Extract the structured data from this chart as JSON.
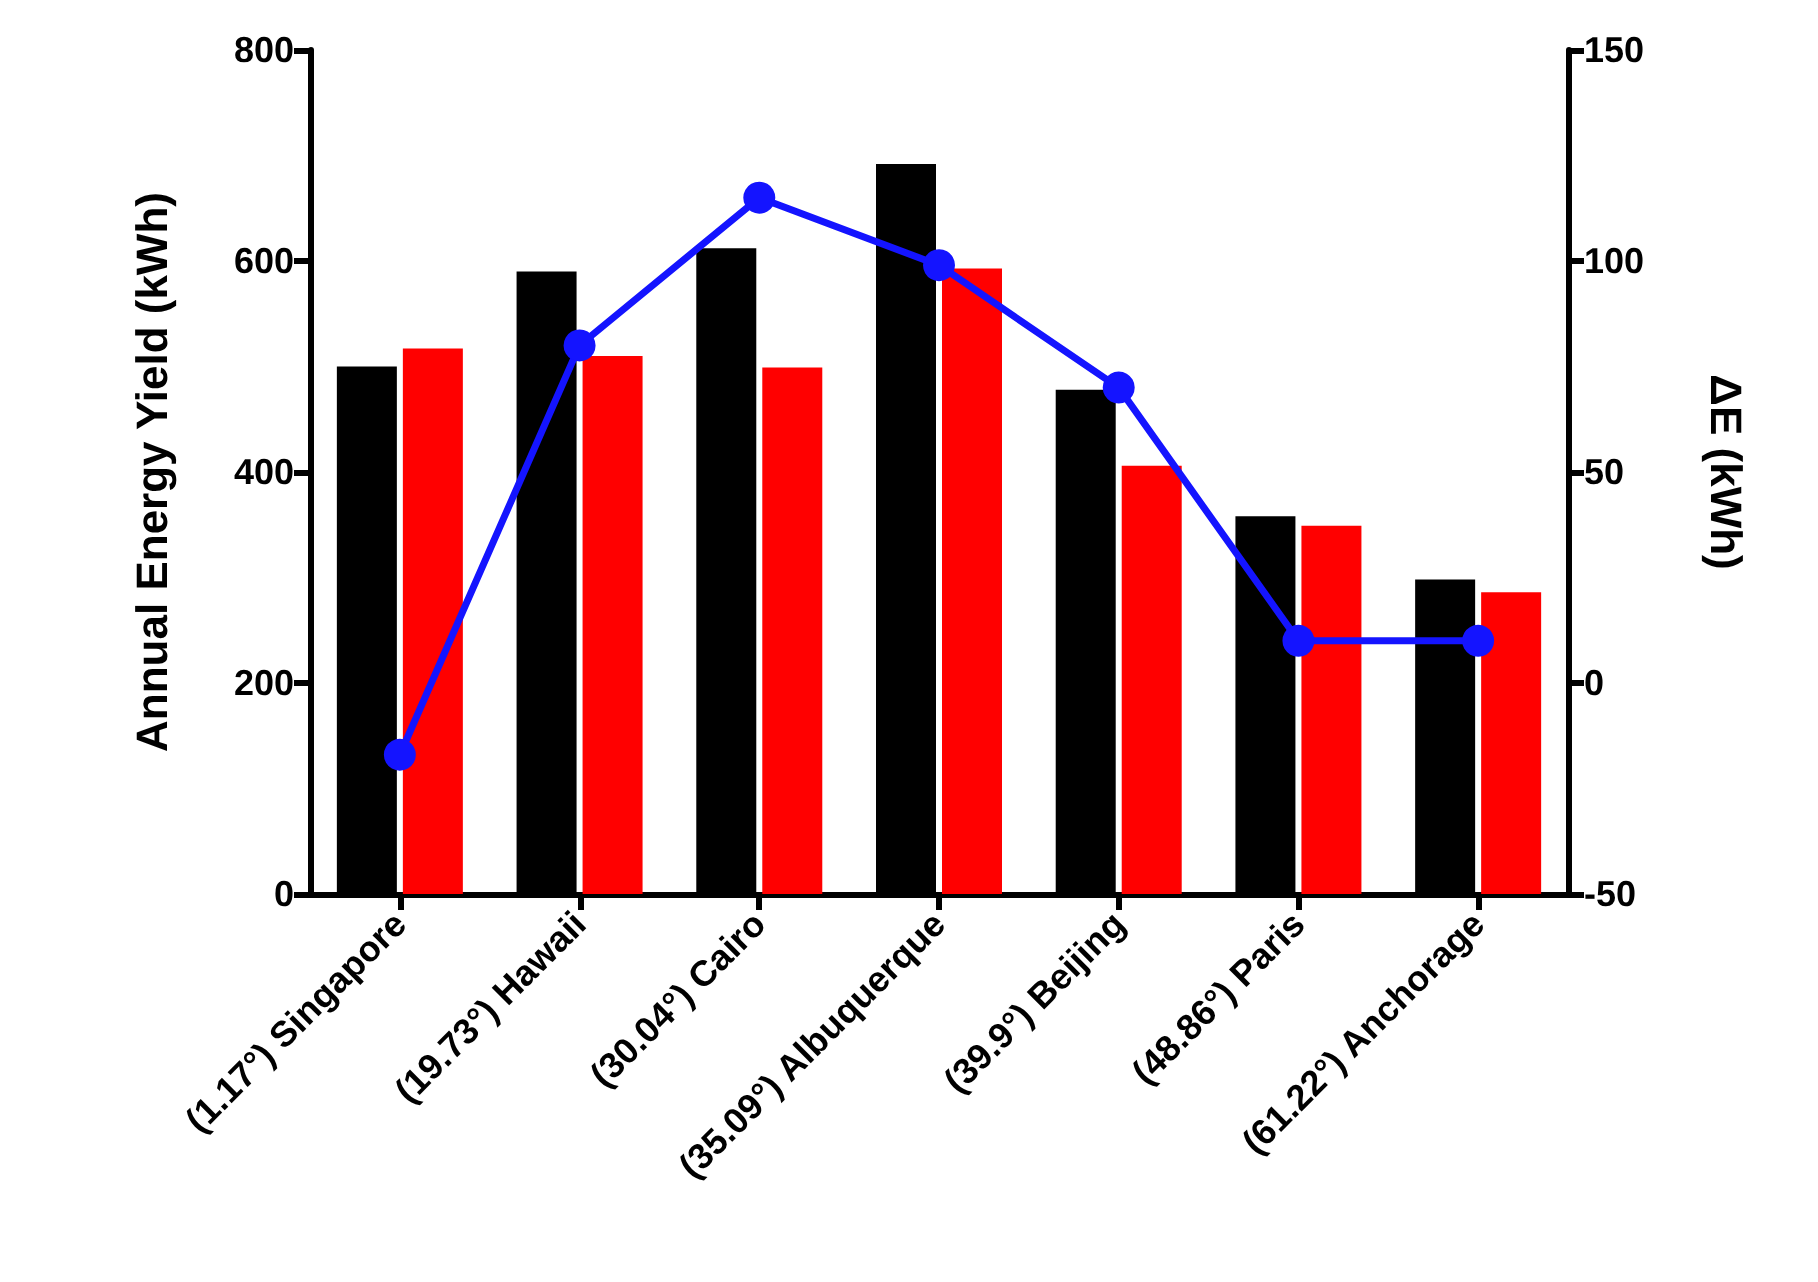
{
  "chart_data": {
    "type": "bar",
    "ylabel": "Annual Energy Yield (kWh)",
    "y2label": "ΔE (kWh)",
    "categories": [
      "(1.17°) Singapore",
      "(19.73°) Hawaii",
      "(30.04°) Cairo",
      "(35.09°) Albuquerque",
      "(39.9°) Beijing",
      "(48.86°) Paris",
      "(61.22°) Anchorage"
    ],
    "series": [
      {
        "color": "#000000",
        "values": [
          500,
          590,
          612,
          692,
          478,
          358,
          298
        ]
      },
      {
        "color": "#ff0000",
        "values": [
          517,
          510,
          499,
          593,
          406,
          349,
          286
        ]
      },
      {
        "type": "line",
        "axis": "y2",
        "color": "#1414ff",
        "values": [
          -17,
          80,
          115,
          99,
          70,
          10,
          10
        ]
      }
    ],
    "ylim": [
      0,
      800
    ],
    "yticks": [
      0,
      200,
      400,
      600,
      800
    ],
    "y2lim": [
      -50,
      150
    ],
    "y2ticks": [
      -50,
      0,
      50,
      100,
      150
    ],
    "grid": false,
    "marker": "circle"
  }
}
